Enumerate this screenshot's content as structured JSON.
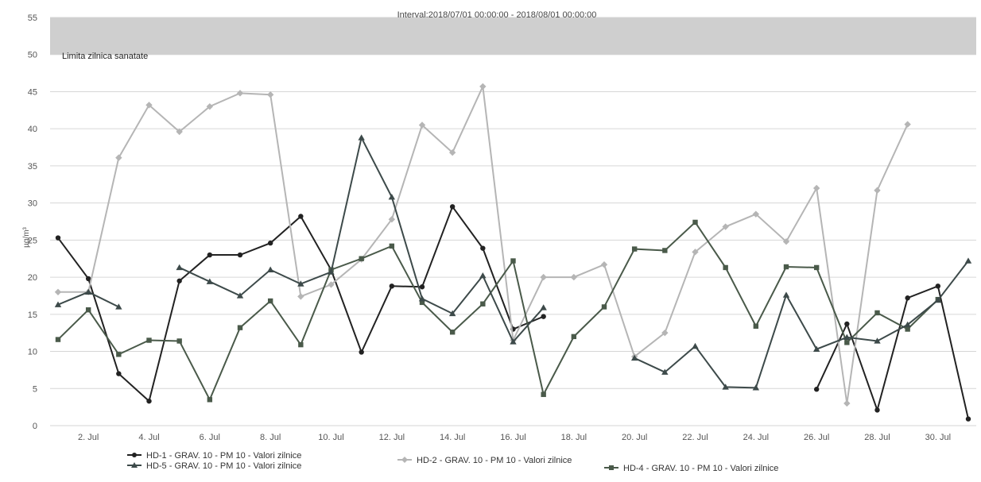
{
  "chart_data": {
    "type": "line",
    "title": "Interval:2018/07/01 00:00:00 - 2018/08/01 00:00:00",
    "ylabel": "µg/m³",
    "xlabel": "",
    "ylim": [
      0,
      55
    ],
    "y_ticks": [
      0,
      5,
      10,
      15,
      20,
      25,
      30,
      35,
      40,
      45,
      50,
      55
    ],
    "x_range": [
      1,
      31
    ],
    "x_ticks": [
      2,
      4,
      6,
      8,
      10,
      12,
      14,
      16,
      18,
      20,
      22,
      24,
      26,
      28,
      30
    ],
    "x_tick_labels": [
      "2. Jul",
      "4. Jul",
      "6. Jul",
      "8. Jul",
      "10. Jul",
      "12. Jul",
      "14. Jul",
      "16. Jul",
      "18. Jul",
      "20. Jul",
      "22. Jul",
      "24. Jul",
      "26. Jul",
      "28. Jul",
      "30. Jul"
    ],
    "grid": true,
    "band": {
      "from": 50,
      "to": 55,
      "label": "Limita zilnica sanatate",
      "color": "#cfcfcf"
    },
    "legend_position": "bottom",
    "legend": [
      "HD-1 - GRAV. 10 - PM 10 - Valori zilnice",
      "HD-2 - GRAV. 10 - PM 10 - Valori zilnice",
      "HD-4 - GRAV. 10 - PM 10 - Valori zilnice",
      "HD-5 - GRAV. 10 - PM 10 - Valori zilnice"
    ],
    "series": [
      {
        "name": "HD-1 - GRAV. 10 - PM 10 - Valori zilnice",
        "color": "#222222",
        "marker": "circle",
        "x": [
          1,
          2,
          3,
          4,
          5,
          6,
          7,
          8,
          9,
          10,
          11,
          12,
          13,
          14,
          15,
          16,
          17,
          18,
          19,
          20,
          21,
          22,
          23,
          24,
          25,
          26,
          27,
          28,
          29,
          30,
          31
        ],
        "y": [
          25.3,
          19.8,
          7,
          3.3,
          19.5,
          23,
          23,
          24.6,
          28.2,
          21,
          9.9,
          18.8,
          18.7,
          29.5,
          23.9,
          13,
          14.7,
          null,
          null,
          null,
          null,
          null,
          null,
          null,
          null,
          4.9,
          13.7,
          2.1,
          17.2,
          18.8,
          0.9
        ]
      },
      {
        "name": "HD-2 - GRAV. 10 - PM 10 - Valori zilnice",
        "color": "#b5b5b5",
        "marker": "diamond",
        "x": [
          1,
          2,
          3,
          4,
          5,
          6,
          7,
          8,
          9,
          10,
          11,
          12,
          13,
          14,
          15,
          16,
          17,
          18,
          19,
          20,
          21,
          22,
          23,
          24,
          25,
          26,
          27,
          28,
          29,
          30,
          31
        ],
        "y": [
          18,
          18,
          36.1,
          43.2,
          39.6,
          43,
          44.8,
          44.6,
          17.4,
          19,
          22.4,
          27.8,
          40.5,
          36.8,
          45.7,
          11.5,
          20,
          20,
          21.7,
          9.3,
          12.5,
          23.4,
          26.8,
          28.5,
          24.8,
          32,
          3,
          31.7,
          40.6,
          null,
          null
        ]
      },
      {
        "name": "HD-4 - GRAV. 10 - PM 10 - Valori zilnice",
        "color": "#4a5a4a",
        "marker": "square",
        "x": [
          1,
          2,
          3,
          4,
          5,
          6,
          7,
          8,
          9,
          10,
          11,
          12,
          13,
          14,
          15,
          16,
          17,
          18,
          19,
          20,
          21,
          22,
          23,
          24,
          25,
          26,
          27,
          28,
          29,
          30,
          31
        ],
        "y": [
          11.6,
          15.6,
          9.6,
          11.5,
          11.4,
          3.5,
          13.2,
          16.8,
          10.9,
          21,
          22.5,
          24.2,
          16.6,
          12.6,
          16.4,
          22.2,
          4.2,
          12,
          16,
          23.8,
          23.6,
          27.4,
          21.3,
          13.4,
          21.4,
          21.3,
          11.2,
          15.2,
          13,
          17,
          null
        ]
      },
      {
        "name": "HD-5 - GRAV. 10 - PM 10 - Valori zilnice",
        "color": "#3d4a4a",
        "marker": "triangle",
        "x": [
          1,
          2,
          3,
          4,
          5,
          6,
          7,
          8,
          9,
          10,
          11,
          12,
          13,
          14,
          15,
          16,
          17,
          18,
          19,
          20,
          21,
          22,
          23,
          24,
          25,
          26,
          27,
          28,
          29,
          30,
          31
        ],
        "y": [
          16.3,
          18,
          16,
          null,
          21.3,
          19.4,
          17.5,
          21,
          19.1,
          20.7,
          38.8,
          30.8,
          17.1,
          15.1,
          20.2,
          11.3,
          15.9,
          null,
          null,
          9.1,
          7.2,
          10.7,
          5.2,
          5.1,
          17.6,
          10.3,
          11.9,
          11.4,
          13.6,
          16.9,
          22.2
        ]
      }
    ]
  }
}
